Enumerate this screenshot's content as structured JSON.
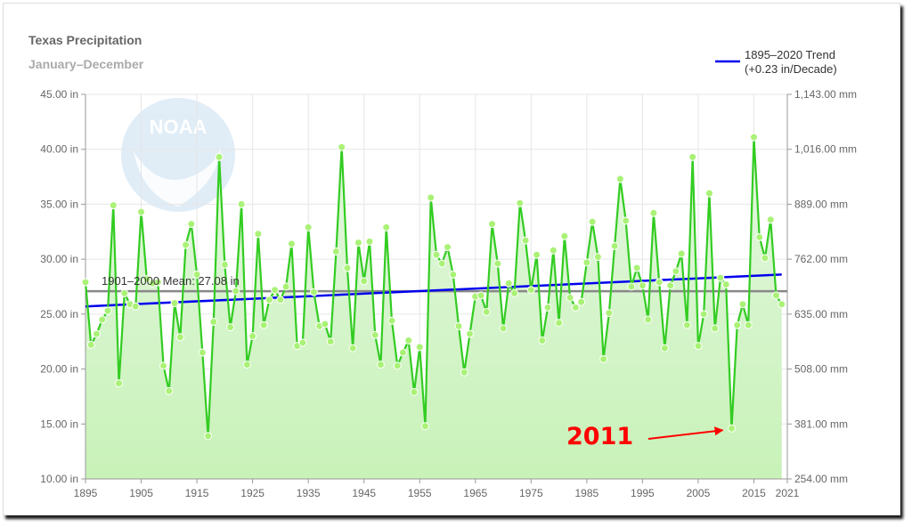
{
  "chart_data": {
    "type": "line",
    "title": "Texas Precipitation",
    "subtitle": "January–December",
    "x_range": [
      1895,
      2021
    ],
    "ylim": [
      10,
      45
    ],
    "y_ticks_left": [
      "10.00 in",
      "15.00 in",
      "20.00 in",
      "25.00 in",
      "30.00 in",
      "35.00 in",
      "40.00 in",
      "45.00 in"
    ],
    "y_ticks_right": [
      "254.00 mm",
      "381.00 mm",
      "508.00 mm",
      "635.00 mm",
      "762.00 mm",
      "889.00 mm",
      "1,016.00 mm",
      "1,143.00 mm"
    ],
    "x_ticks": [
      "1895",
      "1905",
      "1915",
      "1925",
      "1935",
      "1945",
      "1955",
      "1965",
      "1975",
      "1985",
      "1995",
      "2005",
      "2015",
      "2021"
    ],
    "grid": true,
    "legend_position": "top-right",
    "colors": {
      "series": "#33cc22",
      "marker": "#aaf277",
      "area_top": "#e4f7e0",
      "area_bottom": "#c8f2b8",
      "trend": "#0000ee",
      "mean": "#888888",
      "annotation": "#ff0000"
    },
    "series": [
      {
        "x_start": 1895,
        "values": [
          27.9,
          22.2,
          23.2,
          24.5,
          25.3,
          34.9,
          18.7,
          26.9,
          25.9,
          25.7,
          34.3,
          28.2,
          27.8,
          27.9,
          20.3,
          18.0,
          26.0,
          22.9,
          31.3,
          33.2,
          28.6,
          21.5,
          13.9,
          24.3,
          39.3,
          29.5,
          23.8,
          27.1,
          35.0,
          20.4,
          23.0,
          32.3,
          24.0,
          26.3,
          27.2,
          26.3,
          27.5,
          31.4,
          22.1,
          22.4,
          32.9,
          27.0,
          23.9,
          24.1,
          22.5,
          30.7,
          40.2,
          29.2,
          21.9,
          31.5,
          28.0,
          31.6,
          23.1,
          20.4,
          32.9,
          24.4,
          20.3,
          21.5,
          22.6,
          17.9,
          22.0,
          14.8,
          35.6,
          30.4,
          29.6,
          31.1,
          28.6,
          23.9,
          19.7,
          23.2,
          26.6,
          26.7,
          25.2,
          33.2,
          29.6,
          23.7,
          27.8,
          26.9,
          35.1,
          31.7,
          27.2,
          30.4,
          22.6,
          25.6,
          30.8,
          24.2,
          32.1,
          26.5,
          25.6,
          26.1,
          29.7,
          33.4,
          30.2,
          20.9,
          25.1,
          31.2,
          37.3,
          33.5,
          27.5,
          29.2,
          27.6,
          24.5,
          34.2,
          27.9,
          21.9,
          27.6,
          28.9,
          30.5,
          24.0,
          39.3,
          22.1,
          25.0,
          36.0,
          23.7,
          28.3,
          27.7,
          14.6,
          24.0,
          25.9,
          24.0,
          41.1,
          32.0,
          30.1,
          33.6,
          26.7,
          25.9
        ]
      }
    ],
    "mean": {
      "label": "1901–2000 Mean: 27.08 in",
      "value": 27.08
    },
    "trend": {
      "legend_line1": "1895–2020 Trend",
      "legend_line2": "(+0.23 in/Decade)",
      "start": 25.7,
      "end": 28.6
    },
    "annotation": {
      "text": "2011",
      "target_year": 2011,
      "target_value": 14.6
    },
    "watermark": "NOAA"
  }
}
